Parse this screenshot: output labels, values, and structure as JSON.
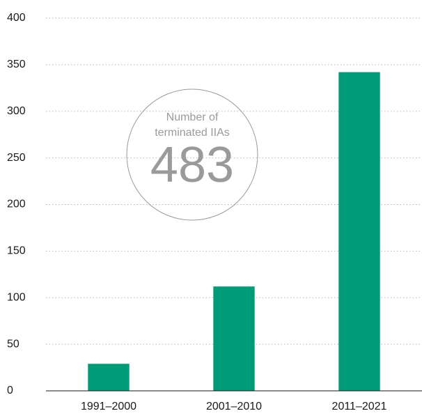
{
  "chart_data": {
    "type": "bar",
    "categories": [
      "1991–2000",
      "2001–2010",
      "2011–2021"
    ],
    "values": [
      29,
      112,
      342
    ],
    "color": "#009b77",
    "ylim": [
      0,
      400
    ],
    "yticks": [
      0,
      50,
      100,
      150,
      200,
      250,
      300,
      350,
      400
    ],
    "grid": true,
    "annotation": {
      "lines": [
        "Number of",
        "terminated IIAs"
      ],
      "number": 483
    }
  }
}
